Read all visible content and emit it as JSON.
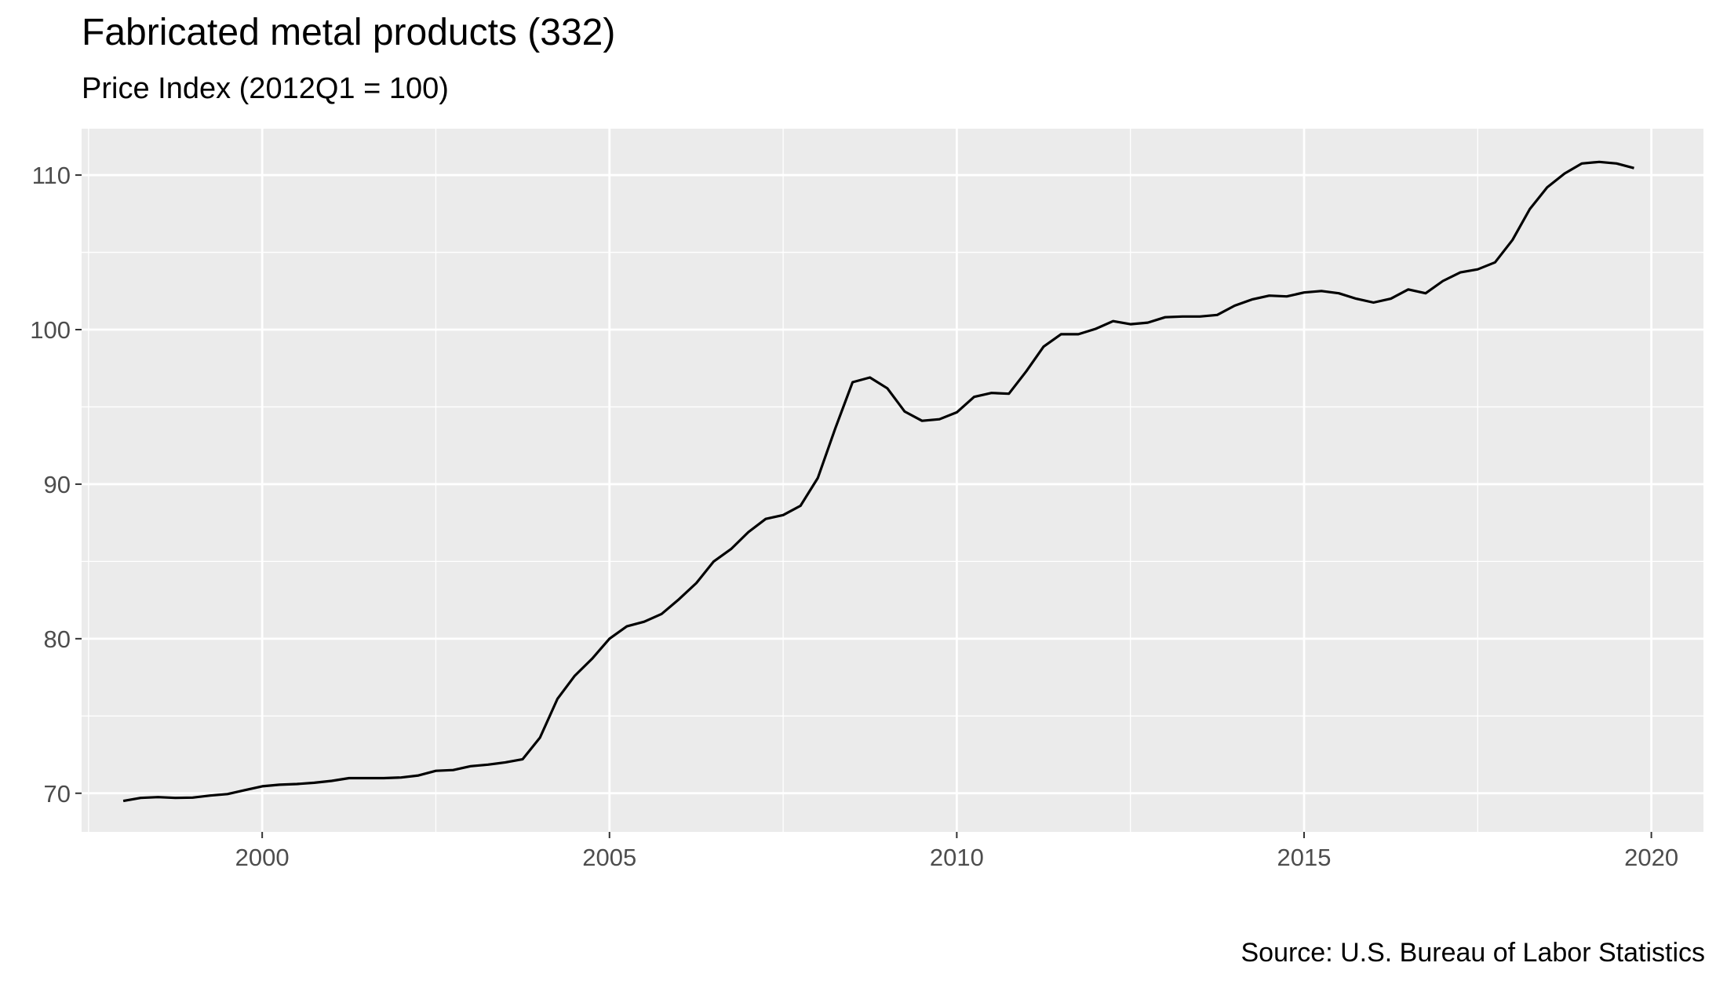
{
  "chart_data": {
    "type": "line",
    "title": "Fabricated metal products (332)",
    "subtitle": "Price Index (2012Q1 = 100)",
    "caption": "Source: U.S. Bureau of Labor Statistics",
    "xlabel": "",
    "ylabel": "",
    "xlim": [
      1997.4,
      2020.75
    ],
    "ylim": [
      67.5,
      113.0
    ],
    "x_ticks": [
      2000,
      2005,
      2010,
      2015,
      2020
    ],
    "y_ticks": [
      70,
      80,
      90,
      100,
      110
    ],
    "grid": true,
    "legend": "none",
    "colors": {
      "panel": "#ebebeb",
      "grid": "#ffffff",
      "line": "#000000"
    },
    "series": [
      {
        "x": [
          1998.0,
          1998.25,
          1998.5,
          1998.75,
          1999.0,
          1999.25,
          1999.5,
          1999.75,
          2000.0,
          2000.25,
          2000.5,
          2000.75,
          2001.0,
          2001.25,
          2001.5,
          2001.75,
          2002.0,
          2002.25,
          2002.5,
          2002.75,
          2003.0,
          2003.25,
          2003.5,
          2003.75,
          2004.0,
          2004.25,
          2004.5,
          2004.75,
          2005.0,
          2005.25,
          2005.5,
          2005.75,
          2006.0,
          2006.25,
          2006.5,
          2006.75,
          2007.0,
          2007.25,
          2007.5,
          2007.75,
          2008.0,
          2008.25,
          2008.5,
          2008.75,
          2009.0,
          2009.25,
          2009.5,
          2009.75,
          2010.0,
          2010.25,
          2010.5,
          2010.75,
          2011.0,
          2011.25,
          2011.5,
          2011.75,
          2012.0,
          2012.25,
          2012.5,
          2012.75,
          2013.0,
          2013.25,
          2013.5,
          2013.75,
          2014.0,
          2014.25,
          2014.5,
          2014.75,
          2015.0,
          2015.25,
          2015.5,
          2015.75,
          2016.0,
          2016.25,
          2016.5,
          2016.75,
          2017.0,
          2017.25,
          2017.5,
          2017.75,
          2018.0,
          2018.25,
          2018.5,
          2018.75,
          2019.0,
          2019.25,
          2019.5,
          2019.75
        ],
        "y": [
          69.5,
          69.7,
          69.75,
          69.7,
          69.72,
          69.85,
          69.95,
          70.2,
          70.45,
          70.55,
          70.6,
          70.68,
          70.8,
          70.98,
          70.98,
          70.98,
          71.02,
          71.15,
          71.45,
          71.5,
          71.75,
          71.85,
          72.0,
          72.2,
          73.6,
          76.1,
          77.6,
          78.7,
          80.0,
          80.8,
          81.1,
          81.6,
          82.55,
          83.6,
          85.0,
          85.8,
          86.9,
          87.75,
          88.0,
          88.6,
          90.4,
          93.6,
          96.6,
          96.9,
          96.2,
          94.7,
          94.1,
          94.2,
          94.65,
          95.65,
          95.9,
          95.85,
          97.3,
          98.9,
          99.7,
          99.7,
          100.05,
          100.55,
          100.35,
          100.45,
          100.8,
          100.85,
          100.85,
          100.95,
          101.55,
          101.95,
          102.2,
          102.15,
          102.4,
          102.5,
          102.35,
          102.0,
          101.75,
          102.0,
          102.6,
          102.35,
          103.15,
          103.7,
          103.9,
          104.35,
          105.8,
          107.8,
          109.2,
          110.1,
          110.75,
          110.85,
          110.75,
          110.45
        ]
      }
    ]
  }
}
